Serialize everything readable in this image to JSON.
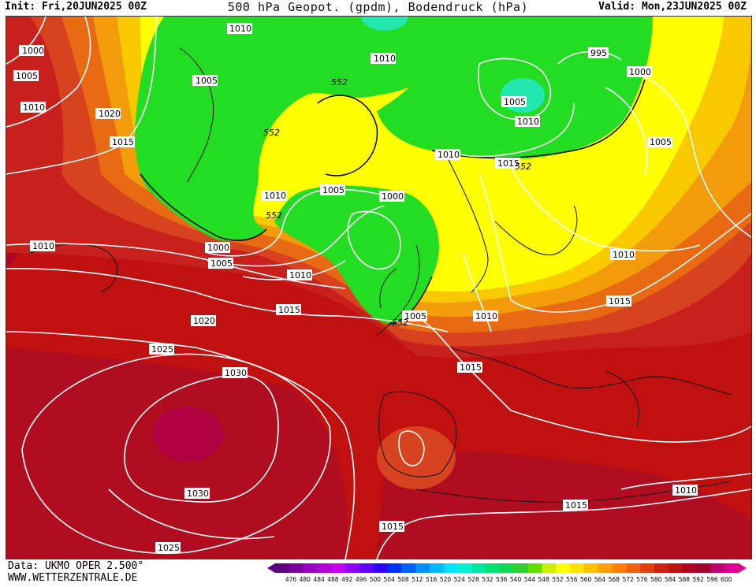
{
  "header": {
    "init": "Init: Fri,20JUN2025 00Z",
    "title": "500 hPa Geopot. (gpdm), Bodendruck (hPa)",
    "valid": "Valid: Mon,23JUN2025 00Z"
  },
  "footer": {
    "source": "Data: UKMO OPER 2.500°",
    "site": "WWW.WETTERZENTRALE.DE"
  },
  "colors": {
    "deep_red": "#b0002a",
    "red": "#c8102e",
    "dark_orange": "#d8431f",
    "orange": "#e86a12",
    "light_orange": "#f29c0c",
    "amber": "#f8c800",
    "yellow": "#ffff00",
    "green": "#22dd22",
    "teal": "#22e8b0"
  },
  "legend": {
    "values": [
      "476",
      "480",
      "484",
      "488",
      "492",
      "496",
      "500",
      "504",
      "508",
      "512",
      "516",
      "520",
      "524",
      "528",
      "532",
      "536",
      "540",
      "544",
      "548",
      "552",
      "556",
      "560",
      "564",
      "568",
      "572",
      "576",
      "580",
      "584",
      "588",
      "592",
      "596",
      "600"
    ],
    "colors": [
      "#5a0080",
      "#7a00a0",
      "#9a00c0",
      "#b400d8",
      "#c800f0",
      "#9000ff",
      "#6000ff",
      "#3000ff",
      "#0030ff",
      "#0060ff",
      "#0090ff",
      "#00b8ff",
      "#00e0ff",
      "#00f0d0",
      "#00e8a0",
      "#00e070",
      "#10d850",
      "#30d030",
      "#60e000",
      "#c8f000",
      "#ffff00",
      "#ffe000",
      "#ffc000",
      "#ffa000",
      "#ff8000",
      "#f06010",
      "#e04010",
      "#d02010",
      "#c01010",
      "#b00020",
      "#a00030",
      "#c00070",
      "#e00090"
    ]
  },
  "isobars": {
    "labels": [
      "1000",
      "1005",
      "1010",
      "1020",
      "1015",
      "1010",
      "1005",
      "1010",
      "1010",
      "1005",
      "1000",
      "995",
      "1000",
      "1005",
      "1010",
      "1015",
      "1005",
      "1010",
      "1015",
      "1020",
      "1025",
      "1030",
      "1030",
      "1025",
      "1015",
      "1015",
      "1010",
      "1015",
      "1010",
      "1010",
      "1005",
      "1015",
      "1010",
      "1000",
      "1005",
      "1010"
    ],
    "height_labels": [
      "552",
      "552",
      "552",
      "552",
      "552"
    ]
  }
}
